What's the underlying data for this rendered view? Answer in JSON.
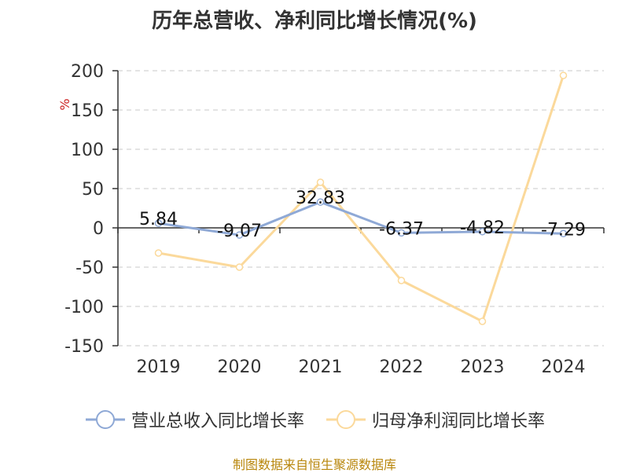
{
  "chart_data": {
    "type": "line",
    "title": "历年总营收、净利同比增长情况(%)",
    "ylabel": "%",
    "xlabel": "",
    "categories": [
      "2019",
      "2020",
      "2021",
      "2022",
      "2023",
      "2024"
    ],
    "ylim": [
      -150,
      200
    ],
    "yticks": [
      200,
      150,
      100,
      50,
      0,
      -50,
      -100,
      -150
    ],
    "grid": true,
    "legend_position": "bottom",
    "series": [
      {
        "name": "营业总收入同比增长率",
        "color": "#8fa9d6",
        "values": [
          5.84,
          -9.07,
          32.83,
          -6.37,
          -4.82,
          -7.29
        ],
        "labels": [
          "5.84",
          "-9.07",
          "32.83",
          "-6.37",
          "-4.82",
          "-7.29"
        ]
      },
      {
        "name": "归母净利润同比增长率",
        "color": "#fbd99b",
        "values": [
          -32,
          -50,
          58,
          -67,
          -119,
          194
        ]
      }
    ]
  },
  "source": "制图数据来自恒生聚源数据库"
}
